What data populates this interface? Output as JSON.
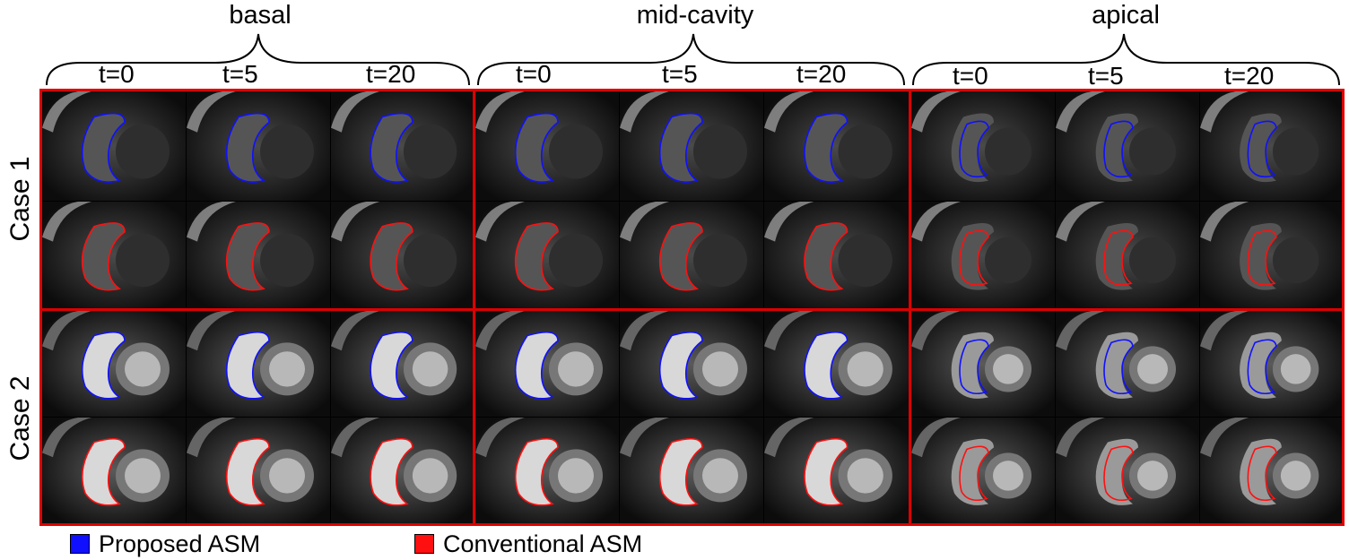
{
  "columns": [
    {
      "label": "basal",
      "times": [
        "t=0",
        "t=5",
        "t=20"
      ]
    },
    {
      "label": "mid-cavity",
      "times": [
        "t=0",
        "t=5",
        "t=20"
      ]
    },
    {
      "label": "apical",
      "times": [
        "t=0",
        "t=5",
        "t=20"
      ]
    }
  ],
  "rows": [
    {
      "label": "Case 1"
    },
    {
      "label": "Case 2"
    }
  ],
  "legend": [
    {
      "label": "Proposed ASM",
      "color": "#1010ff"
    },
    {
      "label": "Conventional ASM",
      "color": "#ff1010"
    }
  ],
  "colors": {
    "frame": "#dd0000",
    "proposed": "#1010ff",
    "conventional": "#ff1010"
  }
}
